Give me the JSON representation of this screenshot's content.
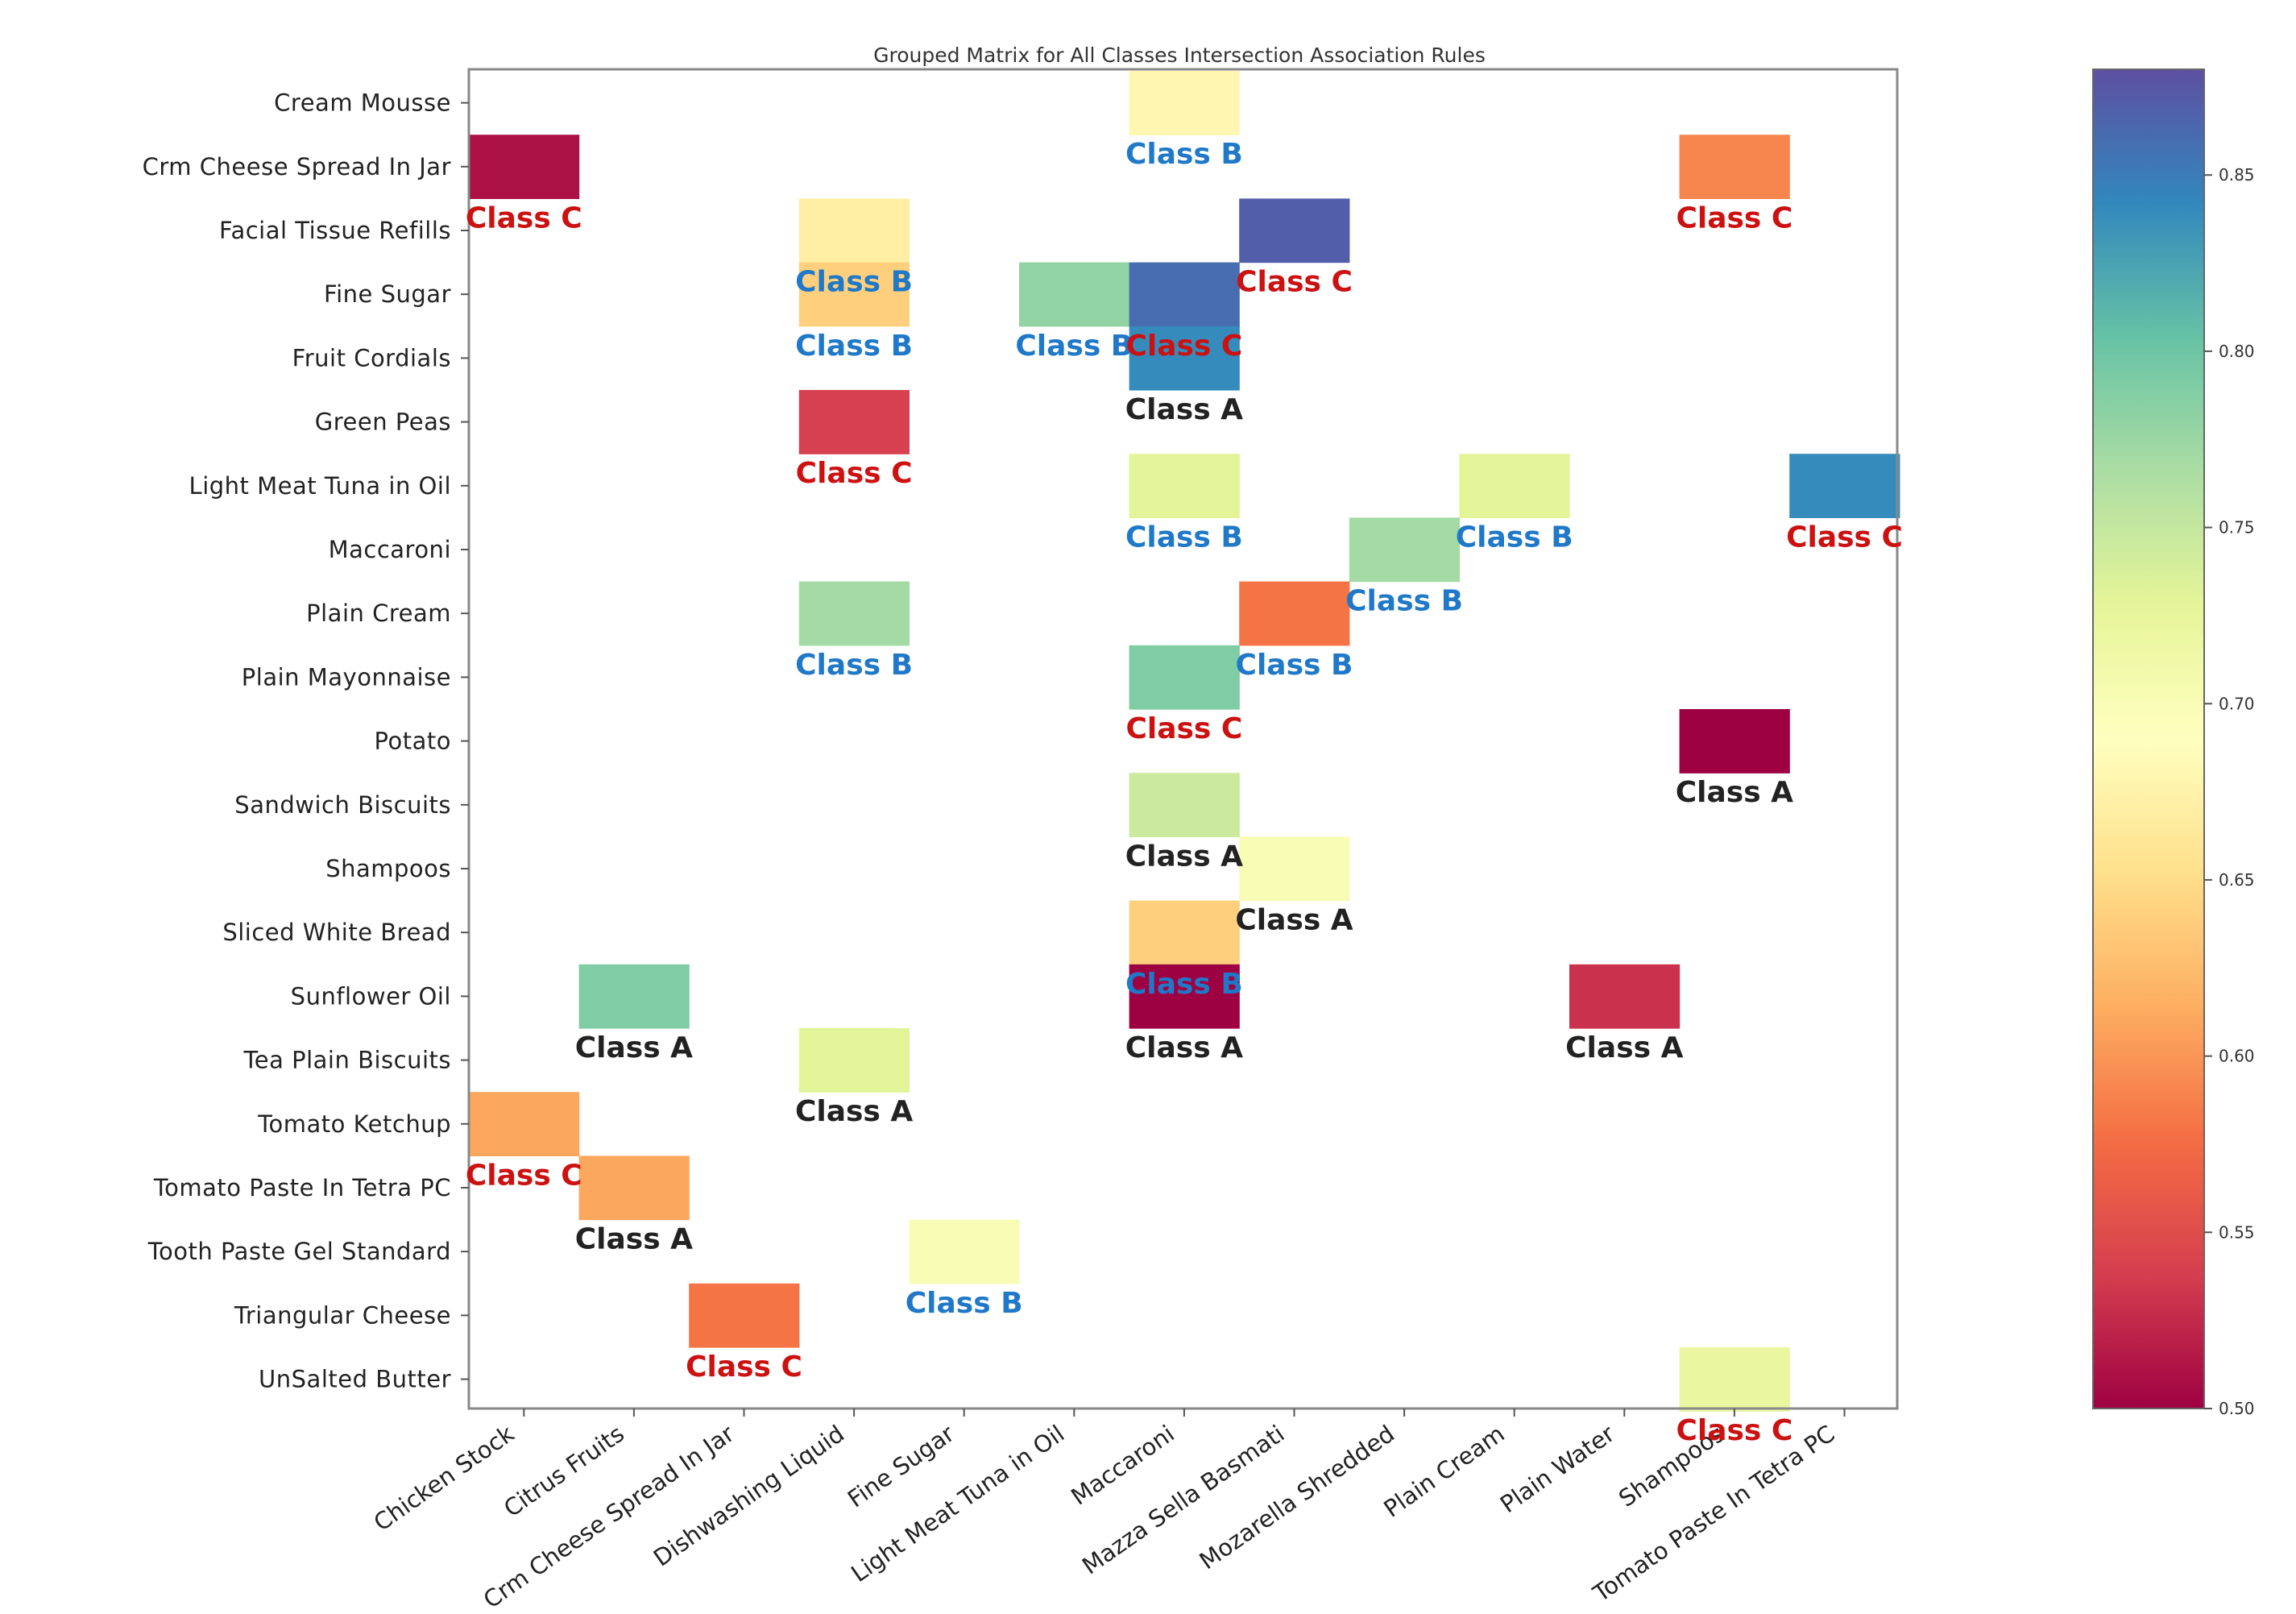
{
  "chart_data": {
    "type": "heatmap",
    "title": "Grouped Matrix for All Classes Intersection Association Rules",
    "y_categories": [
      "Cream Mousse",
      "Crm Cheese Spread In Jar",
      "Facial Tissue Refills",
      "Fine Sugar",
      "Fruit Cordials",
      "Green Peas",
      "Light Meat Tuna in Oil",
      "Maccaroni",
      "Plain Cream",
      "Plain Mayonnaise",
      "Potato",
      "Sandwich Biscuits",
      "Shampoos",
      "Sliced White Bread",
      "Sunflower Oil",
      "Tea Plain Biscuits",
      "Tomato Ketchup",
      "Tomato Paste In Tetra PC",
      "Tooth Paste Gel Standard",
      "Triangular Cheese",
      "UnSalted Butter"
    ],
    "x_categories": [
      "Chicken Stock",
      "Citrus Fruits",
      "Crm Cheese Spread In Jar",
      "Dishwashing Liquid",
      "Fine Sugar",
      "Light Meat Tuna in Oil",
      "Maccaroni",
      "Mazza Sella Basmati",
      "Mozarella Shredded",
      "Plain Cream",
      "Plain Water",
      "Shampoos",
      "Tomato Paste In Tetra PC"
    ],
    "colorbar": {
      "min": 0.5,
      "max": 0.88,
      "ticks": [
        "0.50",
        "0.55",
        "0.60",
        "0.65",
        "0.70",
        "0.75",
        "0.80",
        "0.85"
      ],
      "colormap": "Spectral"
    },
    "class_colors": {
      "Class A": "#222222",
      "Class B": "#1f78c8",
      "Class C": "#cc1111"
    },
    "cells": [
      {
        "y": "Cream Mousse",
        "x": "Maccaroni",
        "value": 0.68,
        "label": "Class B"
      },
      {
        "y": "Crm Cheese Spread In Jar",
        "x": "Chicken Stock",
        "value": 0.51,
        "label": "Class C"
      },
      {
        "y": "Crm Cheese Spread In Jar",
        "x": "Shampoos",
        "value": 0.59,
        "label": "Class C"
      },
      {
        "y": "Facial Tissue Refills",
        "x": "Dishwashing Liquid",
        "value": 0.67,
        "label": "Class B"
      },
      {
        "y": "Facial Tissue Refills",
        "x": "Mazza Sella Basmati",
        "value": 0.87,
        "label": "Class C"
      },
      {
        "y": "Fine Sugar",
        "x": "Dishwashing Liquid",
        "value": 0.64,
        "label": "Class B"
      },
      {
        "y": "Fine Sugar",
        "x": "Light Meat Tuna in Oil",
        "value": 0.78,
        "label": "Class B"
      },
      {
        "y": "Fine Sugar",
        "x": "Maccaroni",
        "value": 0.86,
        "label": "Class C"
      },
      {
        "y": "Fruit Cordials",
        "x": "Maccaroni",
        "value": 0.84,
        "label": "Class A"
      },
      {
        "y": "Green Peas",
        "x": "Dishwashing Liquid",
        "value": 0.54,
        "label": "Class C"
      },
      {
        "y": "Light Meat Tuna in Oil",
        "x": "Maccaroni",
        "value": 0.73,
        "label": "Class B"
      },
      {
        "y": "Light Meat Tuna in Oil",
        "x": "Plain Cream",
        "value": 0.73,
        "label": "Class B"
      },
      {
        "y": "Light Meat Tuna in Oil",
        "x": "Tomato Paste In Tetra PC",
        "value": 0.84,
        "label": "Class C"
      },
      {
        "y": "Maccaroni",
        "x": "Mozarella Shredded",
        "value": 0.77,
        "label": "Class B"
      },
      {
        "y": "Plain Cream",
        "x": "Dishwashing Liquid",
        "value": 0.77,
        "label": "Class B"
      },
      {
        "y": "Plain Cream",
        "x": "Mazza Sella Basmati",
        "value": 0.58,
        "label": "Class B"
      },
      {
        "y": "Plain Mayonnaise",
        "x": "Maccaroni",
        "value": 0.79,
        "label": "Class C"
      },
      {
        "y": "Potato",
        "x": "Shampoos",
        "value": 0.5,
        "label": "Class A"
      },
      {
        "y": "Sandwich Biscuits",
        "x": "Maccaroni",
        "value": 0.745,
        "label": "Class A"
      },
      {
        "y": "Shampoos",
        "x": "Mazza Sella Basmati",
        "value": 0.7,
        "label": "Class A"
      },
      {
        "y": "Sliced White Bread",
        "x": "Maccaroni",
        "value": 0.64,
        "label": "Class B"
      },
      {
        "y": "Sunflower Oil",
        "x": "Citrus Fruits",
        "value": 0.79,
        "label": "Class A"
      },
      {
        "y": "Sunflower Oil",
        "x": "Maccaroni",
        "value": 0.5,
        "label": "Class A"
      },
      {
        "y": "Sunflower Oil",
        "x": "Plain Water",
        "value": 0.53,
        "label": "Class A"
      },
      {
        "y": "Tea Plain Biscuits",
        "x": "Dishwashing Liquid",
        "value": 0.73,
        "label": "Class A"
      },
      {
        "y": "Tomato Ketchup",
        "x": "Chicken Stock",
        "value": 0.61,
        "label": "Class C"
      },
      {
        "y": "Tomato Paste In Tetra PC",
        "x": "Citrus Fruits",
        "value": 0.61,
        "label": "Class A"
      },
      {
        "y": "Tooth Paste Gel Standard",
        "x": "Fine Sugar",
        "value": 0.7,
        "label": "Class B"
      },
      {
        "y": "Triangular Cheese",
        "x": "Crm Cheese Spread In Jar",
        "value": 0.58,
        "label": "Class C"
      },
      {
        "y": "UnSalted Butter",
        "x": "Shampoos",
        "value": 0.72,
        "label": "Class C"
      }
    ]
  }
}
